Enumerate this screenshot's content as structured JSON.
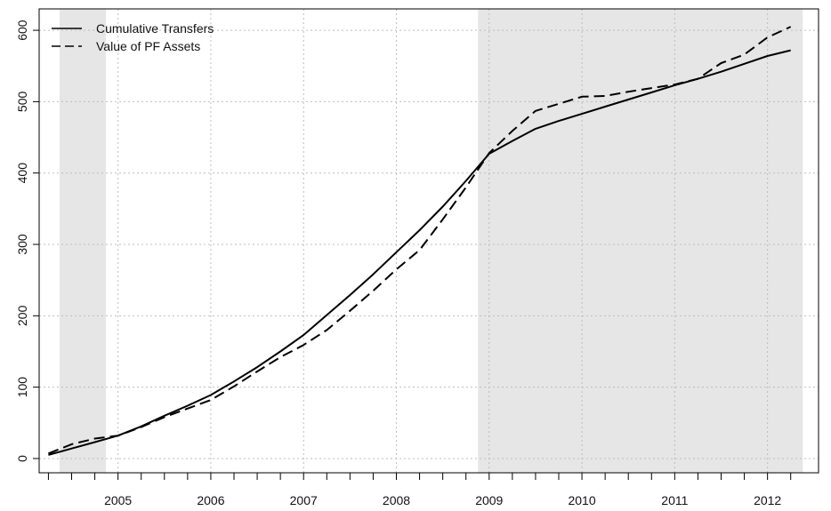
{
  "chart_data": {
    "type": "line",
    "title": "",
    "xlabel": "",
    "ylabel": "",
    "xlim": [
      2004.15,
      2012.55
    ],
    "ylim": [
      -20,
      630
    ],
    "x_ticks": [
      2004.25,
      2004.5,
      2004.75,
      2005,
      2005.25,
      2005.5,
      2005.75,
      2006,
      2006.25,
      2006.5,
      2006.75,
      2007,
      2007.25,
      2007.5,
      2007.75,
      2008,
      2008.25,
      2008.5,
      2008.75,
      2009,
      2009.25,
      2009.5,
      2009.75,
      2010,
      2010.25,
      2010.5,
      2010.75,
      2011,
      2011.25,
      2011.5,
      2011.75,
      2012,
      2012.25
    ],
    "x_tick_labels": [
      {
        "value": 2005,
        "label": "2005"
      },
      {
        "value": 2006,
        "label": "2006"
      },
      {
        "value": 2007,
        "label": "2007"
      },
      {
        "value": 2008,
        "label": "2008"
      },
      {
        "value": 2009,
        "label": "2009"
      },
      {
        "value": 2010,
        "label": "2010"
      },
      {
        "value": 2011,
        "label": "2011"
      },
      {
        "value": 2012,
        "label": "2012"
      }
    ],
    "y_ticks": [
      0,
      100,
      200,
      300,
      400,
      500,
      600
    ],
    "y_tick_labels": [
      "0",
      "100",
      "200",
      "300",
      "400",
      "500",
      "600"
    ],
    "grid": true,
    "legend_position": "top-left",
    "shaded_regions": [
      {
        "start": 2004.37,
        "end": 2004.87
      },
      {
        "start": 2008.88,
        "end": 2012.38
      }
    ],
    "series": [
      {
        "name": "Cumulative Transfers",
        "line_style": "solid",
        "color": "#000000",
        "x": [
          2004.25,
          2004.5,
          2004.75,
          2005,
          2005.25,
          2005.5,
          2005.75,
          2006,
          2006.25,
          2006.5,
          2006.75,
          2007,
          2007.25,
          2007.5,
          2007.75,
          2008,
          2008.25,
          2008.5,
          2008.75,
          2009,
          2009.25,
          2009.5,
          2009.75,
          2010,
          2010.25,
          2010.5,
          2010.75,
          2011,
          2011.25,
          2011.5,
          2011.75,
          2012,
          2012.25
        ],
        "y": [
          5,
          14,
          23,
          32,
          45,
          60,
          74,
          89,
          108,
          128,
          150,
          173,
          201,
          229,
          258,
          289,
          320,
          353,
          389,
          427,
          445,
          462,
          473,
          483,
          493,
          503,
          513,
          523,
          532,
          542,
          553,
          564,
          572
        ]
      },
      {
        "name": "Value of PF Assets",
        "line_style": "dashed",
        "color": "#000000",
        "x": [
          2004.25,
          2004.5,
          2004.75,
          2005,
          2005.25,
          2005.5,
          2005.75,
          2006,
          2006.25,
          2006.5,
          2006.75,
          2007,
          2007.25,
          2007.5,
          2007.75,
          2008,
          2008.25,
          2008.5,
          2008.75,
          2009,
          2009.25,
          2009.5,
          2009.75,
          2010,
          2010.25,
          2010.5,
          2010.75,
          2011,
          2011.25,
          2011.5,
          2011.75,
          2012,
          2012.25
        ],
        "y": [
          7,
          20,
          28,
          32,
          44,
          58,
          70,
          82,
          101,
          122,
          142,
          159,
          180,
          207,
          235,
          265,
          292,
          335,
          380,
          428,
          459,
          487,
          497,
          507,
          508,
          514,
          519,
          524,
          532,
          554,
          566,
          590,
          605
        ]
      }
    ]
  }
}
